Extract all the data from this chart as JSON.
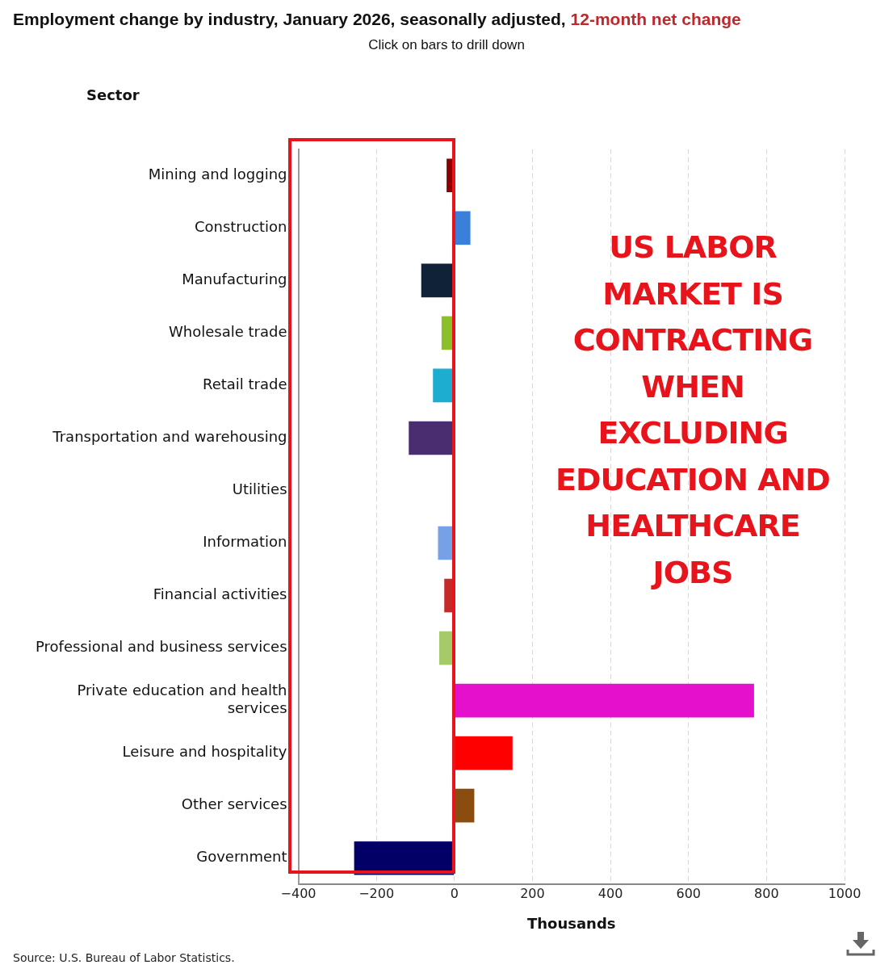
{
  "chart_data": {
    "type": "bar",
    "orientation": "horizontal",
    "title": "Employment change by industry, January 2026, seasonally adjusted, 12-month net change",
    "subtitle": "Click on bars to drill down",
    "ylabel": "Sector",
    "xlabel": "Thousands",
    "categories": [
      "Mining and logging",
      "Construction",
      "Manufacturing",
      "Wholesale trade",
      "Retail trade",
      "Transportation and warehousing",
      "Utilities",
      "Information",
      "Financial activities",
      "Professional and business services",
      "Private education and health services",
      "Leisure and hospitality",
      "Other services",
      "Government"
    ],
    "values": [
      -20,
      41,
      -85,
      -33,
      -55,
      -117,
      -1,
      -42,
      -26,
      -39,
      768,
      149,
      51,
      -257
    ],
    "colors": [
      "#8b0000",
      "#3a7fd9",
      "#0f2238",
      "#8dbf2a",
      "#1cadd0",
      "#4a2c70",
      "#ff6a00",
      "#76a1e6",
      "#c52a2a",
      "#a6c96a",
      "#e510cc",
      "#ff0000",
      "#8b4c0f",
      "#020066"
    ],
    "xlim": [
      -400,
      1000
    ],
    "xticks": [
      -400,
      -200,
      0,
      200,
      400,
      600,
      800,
      1000
    ],
    "grid": "x",
    "annotations": [
      "US LABOR MARKET IS CONTRACTING WHEN EXCLUDING EDUCATION AND HEALTHCARE JOBS",
      "Source: U.S. Bureau of Labor Statistics."
    ]
  }
}
